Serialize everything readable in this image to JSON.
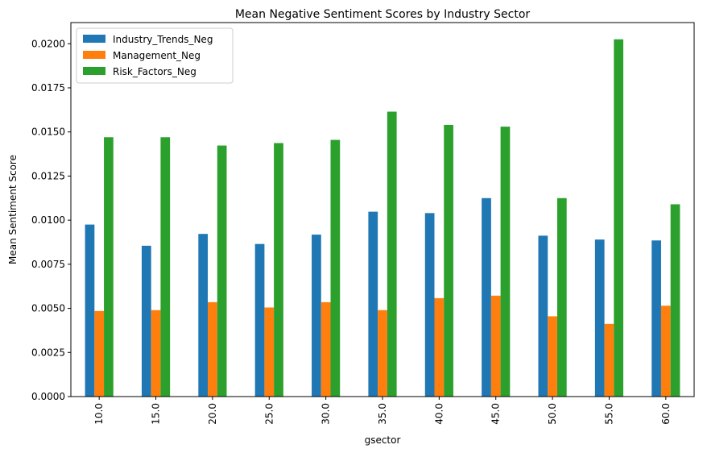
{
  "chart_data": {
    "type": "bar",
    "title": "Mean Negative Sentiment Scores by Industry Sector",
    "xlabel": "gsector",
    "ylabel": "Mean Sentiment Score",
    "categories": [
      "10.0",
      "15.0",
      "20.0",
      "25.0",
      "30.0",
      "35.0",
      "40.0",
      "45.0",
      "50.0",
      "55.0",
      "60.0"
    ],
    "ylim": [
      0,
      0.0212
    ],
    "yticks": [
      "0.0000",
      "0.0025",
      "0.0050",
      "0.0075",
      "0.0100",
      "0.0125",
      "0.0150",
      "0.0175",
      "0.0200"
    ],
    "grid": false,
    "legend_position": "top-left",
    "series": [
      {
        "name": "Industry_Trends_Neg",
        "color": "#1f77b4",
        "values": [
          0.00975,
          0.00855,
          0.00922,
          0.00865,
          0.00918,
          0.01048,
          0.0104,
          0.01125,
          0.00912,
          0.0089,
          0.00885
        ]
      },
      {
        "name": "Management_Neg",
        "color": "#ff7f0e",
        "values": [
          0.00485,
          0.0049,
          0.00535,
          0.00505,
          0.00535,
          0.0049,
          0.00558,
          0.00572,
          0.00455,
          0.00412,
          0.00515
        ]
      },
      {
        "name": "Risk_Factors_Neg",
        "color": "#2ca02c",
        "values": [
          0.0147,
          0.0147,
          0.01423,
          0.01437,
          0.01455,
          0.01615,
          0.0154,
          0.0153,
          0.01125,
          0.02025,
          0.0109
        ]
      }
    ]
  }
}
